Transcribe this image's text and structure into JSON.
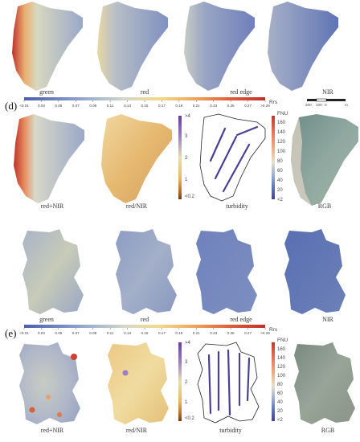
{
  "panel_d": {
    "letter": "(d)",
    "band_labels": [
      "green",
      "red",
      "red edge",
      "NIR"
    ],
    "bottom_labels": [
      "red+NIR",
      "red/NIR",
      "turbidity",
      "RGB"
    ]
  },
  "panel_e": {
    "letter": "(e)",
    "band_labels": [
      "green",
      "red",
      "red edge",
      "NIR"
    ],
    "bottom_labels": [
      "red+NIR",
      "red/NIR",
      "turbidity",
      "RGB"
    ]
  },
  "rrs_colorbar": {
    "unit": "Rrs",
    "ticks": [
      "<0.01",
      "0.03",
      "0.05",
      "0.07",
      "0.09",
      "0.11",
      "0.13",
      "0.15",
      "0.17",
      "0.19",
      "0.21",
      "0.23",
      "0.25",
      "0.27",
      ">0.29"
    ],
    "colors": [
      "#4b5fae",
      "#6f86c0",
      "#9fb3d0",
      "#d4d8c8",
      "#f2d98a",
      "#f0a85a",
      "#e0603a",
      "#c0302a"
    ]
  },
  "ratio_colorbar": {
    "ticks": [
      ">4",
      "3",
      "2",
      "1",
      "<0.2"
    ],
    "colors": [
      "#6a3fa0",
      "#9b7fc0",
      "#e8dfb0",
      "#e8b760",
      "#b8742a",
      "#6b3f1a"
    ]
  },
  "turbidity_colorbar": {
    "unit": "FNU",
    "ticks": [
      "160",
      "140",
      "120",
      "100",
      "80",
      "60",
      "40",
      "20",
      "<2"
    ],
    "colors": [
      "#c0392b",
      "#e8735a",
      "#f0b080",
      "#e8e0d0",
      "#9fb3d0",
      "#5f78b8",
      "#4a3f96"
    ]
  },
  "scalebar": {
    "labels": [
      "200",
      "100",
      "0",
      "m"
    ]
  }
}
